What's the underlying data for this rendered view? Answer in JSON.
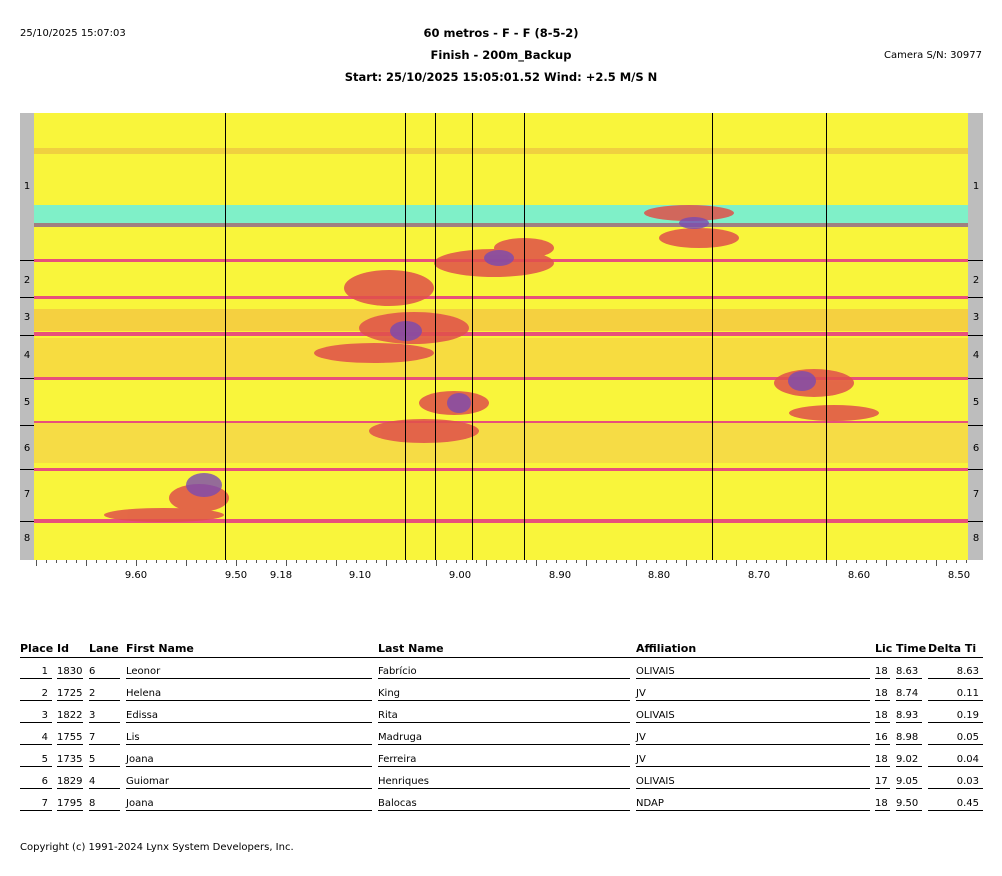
{
  "header": {
    "printed_at": "25/10/2025 15:07:03",
    "title": "60 metros - F - F (8-5-2)",
    "subtitle": "Finish - 200m_Backup",
    "start_line": "Start: 25/10/2025 15:05:01.52    Wind: +2.5 M/S N",
    "camera": "Camera S/N: 30977"
  },
  "photo": {
    "lanes": [
      "1",
      "2",
      "3",
      "4",
      "5",
      "6",
      "7",
      "8"
    ],
    "axis_labels": [
      "9.60",
      "9.50",
      "9.18",
      "9.10",
      "9.00",
      "8.90",
      "8.80",
      "8.70",
      "8.60",
      "8.50"
    ],
    "colors": {
      "background": "#f9f53b",
      "lane_line": "#e8507a",
      "band": "#7ff0c8"
    }
  },
  "table": {
    "columns": [
      "Place",
      "Id",
      "Lane",
      "First Name",
      "Last Name",
      "Affiliation",
      "Lic",
      "Time",
      "Delta Ti"
    ],
    "rows": [
      [
        "1",
        "1830",
        "6",
        "Leonor",
        "Fabrício",
        "OLIVAIS",
        "18",
        "8.63",
        "8.63"
      ],
      [
        "2",
        "1725",
        "2",
        "Helena",
        "King",
        "JV",
        "18",
        "8.74",
        "0.11"
      ],
      [
        "3",
        "1822",
        "3",
        "Edissa",
        "Rita",
        "OLIVAIS",
        "18",
        "8.93",
        "0.19"
      ],
      [
        "4",
        "1755",
        "7",
        "Lis",
        "Madruga",
        "JV",
        "16",
        "8.98",
        "0.05"
      ],
      [
        "5",
        "1735",
        "5",
        "Joana",
        "Ferreira",
        "JV",
        "18",
        "9.02",
        "0.04"
      ],
      [
        "6",
        "1829",
        "4",
        "Guiomar",
        "Henriques",
        "OLIVAIS",
        "17",
        "9.05",
        "0.03"
      ],
      [
        "7",
        "1795",
        "8",
        "Joana",
        "Balocas",
        "NDAP",
        "18",
        "9.50",
        "0.45"
      ]
    ]
  },
  "footer": {
    "copyright": "Copyright (c) 1991-2024 Lynx System Developers, Inc."
  }
}
